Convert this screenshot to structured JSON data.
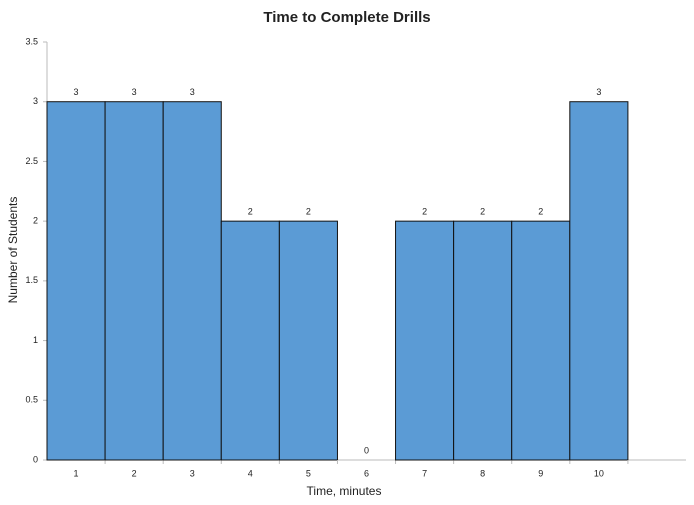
{
  "chart_data": {
    "type": "bar",
    "title": "Time to Complete Drills",
    "x_label": "Time, minutes",
    "y_label": "Number of Students",
    "categories": [
      "1",
      "2",
      "3",
      "4",
      "5",
      "6",
      "7",
      "8",
      "9",
      "10",
      null
    ],
    "values": [
      3,
      3,
      3,
      2,
      2,
      0,
      2,
      2,
      2,
      3,
      null
    ],
    "color": "#5b9bd5",
    "ylim": [
      0,
      3.5
    ],
    "yticks": [
      0,
      0.5,
      1,
      1.5,
      2,
      2.5,
      3,
      3.5
    ],
    "grid": false
  }
}
